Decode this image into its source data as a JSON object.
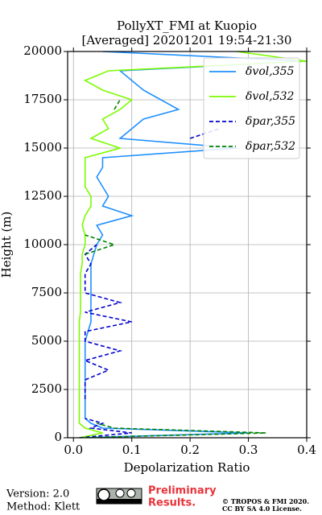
{
  "chart_data": {
    "type": "line",
    "title": "PollyXT_FMI at Kuopio",
    "subtitle": "[Averaged] 20201201 19:54-21:30",
    "xlabel": "Depolarization Ratio",
    "ylabel": "Height (m)",
    "y": [
      0,
      250,
      500,
      750,
      1000,
      1500,
      2000,
      2500,
      3000,
      3500,
      4000,
      4500,
      5000,
      5500,
      6000,
      6500,
      7000,
      7500,
      8000,
      8500,
      9000,
      9500,
      10000,
      10500,
      11000,
      11500,
      12000,
      12500,
      13000,
      13500,
      14000,
      14500,
      15000,
      15500,
      16000,
      16500,
      17000,
      17500,
      18000,
      18500,
      19000,
      19500,
      20000
    ],
    "series": [
      {
        "name": "δvol,355",
        "color": "#1e90ff",
        "linestyle": "solid",
        "values": [
          0.01,
          0.3,
          0.05,
          0.03,
          0.02,
          0.02,
          0.02,
          0.02,
          0.02,
          0.02,
          0.02,
          0.02,
          0.02,
          0.025,
          0.03,
          0.03,
          0.03,
          0.03,
          0.03,
          0.03,
          0.03,
          0.035,
          0.04,
          0.05,
          0.04,
          0.1,
          0.05,
          0.06,
          0.05,
          0.04,
          0.05,
          0.05,
          0.28,
          0.08,
          0.1,
          0.12,
          0.18,
          0.15,
          0.12,
          0.1,
          0.08,
          0.4,
          0.05
        ]
      },
      {
        "name": "δvol,532",
        "color": "#7cfc00",
        "linestyle": "solid",
        "values": [
          0.01,
          0.05,
          0.02,
          0.01,
          0.01,
          0.01,
          0.01,
          0.01,
          0.01,
          0.01,
          0.01,
          0.01,
          0.01,
          0.01,
          0.01,
          0.012,
          0.012,
          0.012,
          0.012,
          0.012,
          0.015,
          0.015,
          0.02,
          0.02,
          0.015,
          0.02,
          0.03,
          0.03,
          0.02,
          0.02,
          0.02,
          0.02,
          0.08,
          0.03,
          0.06,
          0.05,
          0.08,
          0.1,
          0.05,
          0.02,
          0.06,
          0.4,
          0.28
        ]
      },
      {
        "name": "δpar,355",
        "color": "#0000cd",
        "linestyle": "dashed",
        "values": [
          0.01,
          0.1,
          0.03,
          0.05,
          0.02,
          null,
          0.02,
          0.02,
          0.02,
          0.06,
          0.02,
          0.08,
          0.02,
          0.02,
          0.1,
          0.02,
          0.08,
          0.02,
          0.02,
          0.02,
          0.03,
          0.02,
          0.04,
          null,
          null,
          null,
          null,
          null,
          null,
          null,
          null,
          null,
          null,
          0.2,
          0.25,
          null,
          null,
          null,
          null,
          null,
          null,
          null,
          null
        ]
      },
      {
        "name": "δpar,532",
        "color": "#008000",
        "linestyle": "dashed",
        "values": [
          0.01,
          0.33,
          0.07,
          0.04,
          null,
          null,
          null,
          null,
          null,
          null,
          null,
          null,
          null,
          null,
          null,
          null,
          null,
          null,
          null,
          null,
          null,
          0.02,
          0.07,
          0.02,
          null,
          null,
          null,
          null,
          null,
          null,
          null,
          null,
          null,
          null,
          null,
          null,
          0.07,
          0.08,
          null,
          null,
          null,
          null,
          null
        ]
      }
    ],
    "xlim": [
      -0.01,
      0.4
    ],
    "ylim": [
      0,
      20000
    ],
    "xticks": [
      {
        "value": 0,
        "label": "0.0"
      },
      0.1,
      0.2,
      0.3,
      0.4
    ],
    "yticks": [
      0,
      2500,
      5000,
      7500,
      10000,
      12500,
      15000,
      17500,
      20000
    ],
    "grid": true,
    "legend": "upper right"
  },
  "footer": {
    "version": "Version: 2.0",
    "method": "Method: Klett",
    "preliminary": [
      "Preliminary",
      "Results."
    ],
    "copyright": [
      "© TROPOS & FMI 2020.",
      "CC BY SA 4.0 License."
    ]
  }
}
